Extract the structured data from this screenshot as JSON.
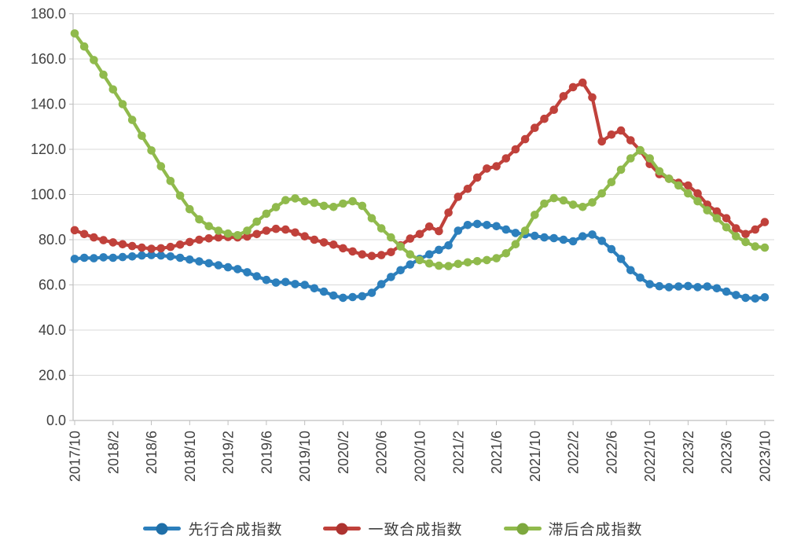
{
  "chart_data": {
    "type": "line",
    "title": "",
    "xlabel": "",
    "ylabel": "",
    "x_period": "monthly",
    "x_points_per_tick": 4,
    "x_tick_labels": [
      "2017/10",
      "2018/2",
      "2018/6",
      "2018/10",
      "2019/2",
      "2019/6",
      "2019/10",
      "2020/2",
      "2020/6",
      "2020/10",
      "2021/2",
      "2021/6",
      "2021/10",
      "2022/2",
      "2022/6",
      "2022/10",
      "2023/2",
      "2023/6",
      "2023/10"
    ],
    "y_tick_labels": [
      "0.0",
      "20.0",
      "40.0",
      "60.0",
      "80.0",
      "100.0",
      "120.0",
      "140.0",
      "160.0",
      "180.0"
    ],
    "ylim": [
      0,
      180
    ],
    "y_step": 20,
    "grid": true,
    "legend_position": "bottom",
    "series": [
      {
        "name": "先行合成指数",
        "color": "#2C7FBC",
        "marker_color": "#1F6FA8",
        "values": [
          71.5,
          72,
          71.8,
          72.2,
          72,
          72.3,
          72.6,
          73,
          73.2,
          73,
          72.6,
          72,
          71.2,
          70.4,
          69.6,
          68.7,
          67.8,
          67,
          65.6,
          63.8,
          62.2,
          61,
          61.3,
          60.4,
          60,
          58.5,
          57,
          55.3,
          54.3,
          54.6,
          55,
          56.5,
          60.3,
          63.5,
          66.5,
          69,
          71.5,
          73.5,
          75.5,
          77.5,
          84,
          86.5,
          87,
          86.5,
          86,
          84.5,
          83,
          82.4,
          81.7,
          81,
          80.7,
          80,
          79.3,
          81.5,
          82.3,
          79.5,
          75.8,
          71.5,
          66.5,
          63.2,
          60.3,
          59.4,
          59,
          59.3,
          59.5,
          59,
          59.3,
          58.5,
          57,
          55.5,
          54.3,
          54,
          54.5
        ]
      },
      {
        "name": "一致合成指数",
        "color": "#C0413B",
        "marker_color": "#AD3330",
        "values": [
          84.2,
          82.5,
          81,
          79.8,
          78.8,
          78,
          77.2,
          76.5,
          76,
          76.2,
          76.8,
          77.8,
          79,
          80,
          80.6,
          81,
          81.2,
          81,
          81.4,
          82.5,
          84,
          84.8,
          84.5,
          83.2,
          81.5,
          80,
          78.8,
          77.8,
          76.2,
          74.8,
          73.5,
          72.8,
          73.2,
          74.5,
          77.5,
          80.5,
          82.5,
          85.8,
          83.8,
          92,
          99,
          102.5,
          107.5,
          111.5,
          112.5,
          116,
          120,
          124.5,
          129.5,
          133.5,
          137.5,
          143.5,
          147.5,
          149.5,
          143,
          123.5,
          126.5,
          128.3,
          124,
          119.5,
          113.5,
          109,
          107,
          105.2,
          104,
          100.5,
          95.5,
          92.5,
          89.5,
          85,
          82.5,
          84.5,
          87.8
        ]
      },
      {
        "name": "滞后合成指数",
        "color": "#90BA4C",
        "marker_color": "#7DA83E",
        "values": [
          171.3,
          165.5,
          159.5,
          153,
          146.5,
          140,
          133,
          126,
          119.5,
          112.5,
          106,
          99.5,
          93.5,
          89,
          86,
          84,
          82.7,
          82,
          84,
          88,
          91.5,
          94.4,
          97.5,
          98.3,
          97,
          96.3,
          95,
          94.5,
          96,
          97,
          95,
          89.5,
          85,
          81,
          77,
          73.5,
          71,
          69.5,
          68.5,
          68.3,
          69.3,
          70,
          70.5,
          71,
          71.8,
          74,
          78,
          84,
          91,
          96,
          98.4,
          97.4,
          95.5,
          94.5,
          96.5,
          100.5,
          105.5,
          111,
          116,
          119.6,
          116,
          110.3,
          107,
          104,
          100.5,
          97,
          93,
          89.5,
          85.5,
          81.5,
          79,
          77,
          76.5
        ]
      }
    ]
  },
  "style": {
    "background": "#FFFFFF",
    "gridline_color": "#D9D9D9",
    "axis_color": "#BFBFBF",
    "tick_label_color": "#404040",
    "legend_text_color": "#404040"
  }
}
